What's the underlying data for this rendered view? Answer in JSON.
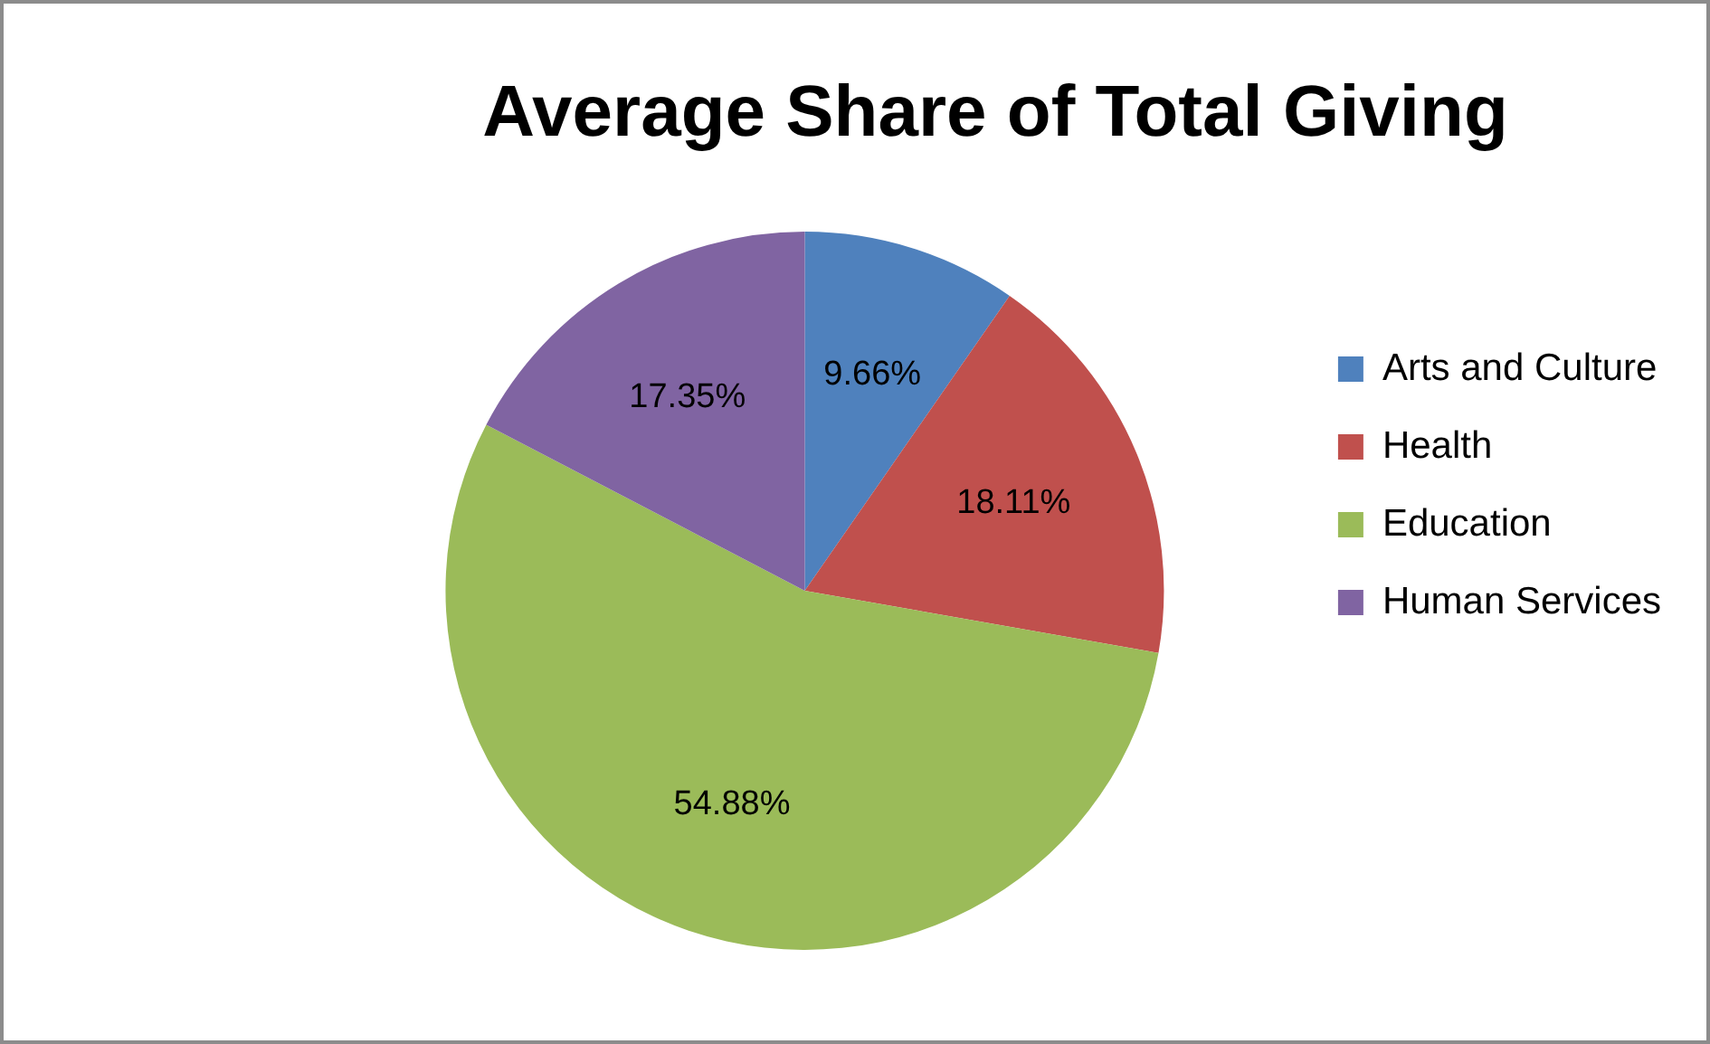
{
  "chart_data": {
    "type": "pie",
    "title": "Average Share of Total Giving",
    "categories": [
      "Arts and Culture",
      "Health",
      "Education",
      "Human Services"
    ],
    "values": [
      9.66,
      18.11,
      54.88,
      17.35
    ],
    "colors": [
      "#4f81bd",
      "#c0504d",
      "#9bbb59",
      "#8064a2"
    ],
    "value_labels": [
      "9.66%",
      "18.11%",
      "54.88%",
      "17.35%"
    ],
    "legend": "right"
  }
}
